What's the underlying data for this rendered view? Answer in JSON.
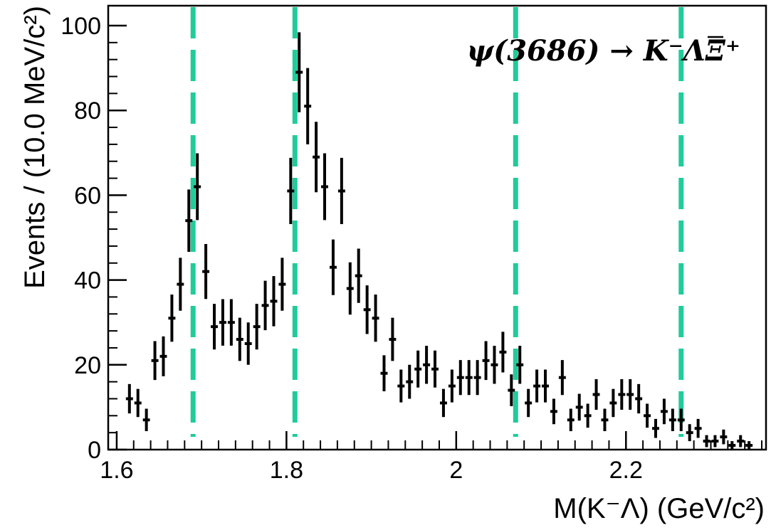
{
  "chart_data": {
    "type": "scatter",
    "title": "",
    "xlabel": "M(K⁻Λ) (GeV/c²)",
    "ylabel": "Events / (10.0 MeV/c²)",
    "annotation": "ψ(3686) → K⁻ΛΞ⁺",
    "xlim": [
      1.59,
      2.365
    ],
    "ylim": [
      0,
      100
    ],
    "x_ticks": [
      {
        "value": 1.6,
        "label": "1.6"
      },
      {
        "value": 1.8,
        "label": "1.8"
      },
      {
        "value": 2.0,
        "label": "2"
      },
      {
        "value": 2.2,
        "label": "2.2"
      }
    ],
    "y_ticks": [
      {
        "value": 0,
        "label": "0"
      },
      {
        "value": 20,
        "label": "20"
      },
      {
        "value": 40,
        "label": "40"
      },
      {
        "value": 60,
        "label": "60"
      },
      {
        "value": 80,
        "label": "80"
      },
      {
        "value": 100,
        "label": "100"
      }
    ],
    "bin_width": 0.01,
    "series": [
      {
        "style": "data points with error bars",
        "x": [
          1.615,
          1.625,
          1.635,
          1.645,
          1.655,
          1.665,
          1.675,
          1.685,
          1.695,
          1.705,
          1.715,
          1.725,
          1.735,
          1.745,
          1.755,
          1.765,
          1.775,
          1.785,
          1.795,
          1.805,
          1.815,
          1.825,
          1.835,
          1.845,
          1.855,
          1.865,
          1.875,
          1.885,
          1.895,
          1.905,
          1.915,
          1.925,
          1.935,
          1.945,
          1.955,
          1.965,
          1.975,
          1.985,
          1.995,
          2.005,
          2.015,
          2.025,
          2.035,
          2.045,
          2.055,
          2.065,
          2.075,
          2.085,
          2.095,
          2.105,
          2.115,
          2.125,
          2.135,
          2.145,
          2.155,
          2.165,
          2.175,
          2.185,
          2.195,
          2.205,
          2.215,
          2.225,
          2.235,
          2.245,
          2.255,
          2.265,
          2.275,
          2.285,
          2.295,
          2.305,
          2.315,
          2.325,
          2.335,
          2.345
        ],
        "y": [
          12,
          11,
          7,
          21,
          22,
          31,
          39,
          54,
          62,
          42,
          29,
          30,
          30,
          26,
          25,
          29,
          34,
          35,
          39,
          61,
          89,
          81,
          69,
          62,
          43,
          61,
          38,
          41,
          33,
          31,
          18,
          26,
          15,
          16,
          19,
          20,
          19,
          11,
          15,
          17,
          17,
          17,
          21,
          20,
          23,
          14,
          20,
          11,
          15,
          15,
          9,
          17,
          7,
          10,
          8,
          13,
          7,
          11,
          13,
          13,
          12,
          8,
          5,
          9,
          7,
          7,
          4,
          5,
          2,
          2,
          3,
          1,
          2,
          1
        ]
      }
    ],
    "vertical_lines": {
      "style": "dashed",
      "color": "#1fcc9a",
      "x": [
        1.69,
        1.81,
        2.07,
        2.265
      ]
    },
    "colors": {
      "markers": "#000000",
      "axis": "#000000"
    }
  }
}
